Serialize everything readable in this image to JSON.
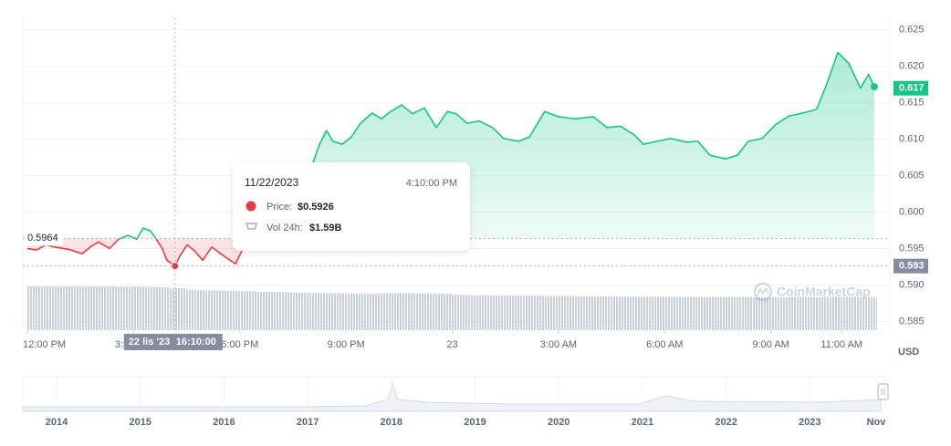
{
  "chart_data": {
    "type": "line",
    "xlim": [
      -0.13,
      24.36
    ],
    "ylim": [
      0.5838,
      0.6266
    ],
    "xticks": [
      {
        "value": 0,
        "label": "12:00 PM"
      },
      {
        "value": 3,
        "label": "3:00 PM"
      },
      {
        "value": 6,
        "label": "6:00 PM"
      },
      {
        "value": 9,
        "label": "9:00 PM"
      },
      {
        "value": 12,
        "label": "23"
      },
      {
        "value": 15,
        "label": "3:00 AM"
      },
      {
        "value": 18,
        "label": "6:00 AM"
      },
      {
        "value": 21,
        "label": "9:00 AM"
      },
      {
        "value": 23,
        "label": "11:00 AM"
      }
    ],
    "yticks": [
      0.625,
      {
        "value": 0.62,
        "label": "0.620"
      },
      0.615,
      {
        "value": 0.61,
        "label": "0.610"
      },
      0.605,
      {
        "value": 0.6,
        "label": "0.600"
      },
      0.595,
      {
        "value": 0.59,
        "label": "0.590"
      },
      0.585
    ],
    "grid": true,
    "y_axis_unit": "USD",
    "color_up": "#16c784",
    "color_down": "#ea3943",
    "series": [
      {
        "name": "Price:",
        "x": [
          0,
          0.26,
          0.52,
          0.77,
          1.16,
          1.55,
          1.8,
          2.01,
          2.32,
          2.58,
          2.84,
          3.09,
          3.27,
          3.48,
          3.61,
          3.81,
          3.94,
          4.17,
          4.3,
          4.51,
          4.72,
          4.95,
          5.21,
          5.54,
          5.88,
          6.06,
          6.31,
          6.96,
          7.73,
          8.25,
          8.45,
          8.63,
          8.89,
          9.15,
          9.41,
          9.74,
          10,
          10.26,
          10.57,
          10.88,
          11.21,
          11.55,
          11.86,
          12.11,
          12.42,
          12.76,
          13.14,
          13.45,
          13.87,
          14.18,
          14.61,
          15,
          15.46,
          15.98,
          16.37,
          16.75,
          17.14,
          17.4,
          17.78,
          18.17,
          18.61,
          18.94,
          19.28,
          19.72,
          20.05,
          20.36,
          20.75,
          21.13,
          21.52,
          21.91,
          22.29,
          22.55,
          22.89,
          23.2,
          23.53,
          23.76,
          23.92
        ],
        "values": [
          0.595,
          0.5948,
          0.5955,
          0.5952,
          0.5949,
          0.5943,
          0.5953,
          0.5959,
          0.595,
          0.5963,
          0.5968,
          0.5963,
          0.5978,
          0.5974,
          0.5965,
          0.595,
          0.5934,
          0.5926,
          0.5939,
          0.5955,
          0.5947,
          0.5934,
          0.5952,
          0.594,
          0.5929,
          0.5947,
          0.5965,
          0.5984,
          0.6022,
          0.6093,
          0.6112,
          0.6097,
          0.6093,
          0.6103,
          0.6122,
          0.6136,
          0.6128,
          0.6138,
          0.6147,
          0.6135,
          0.6143,
          0.6116,
          0.6138,
          0.6135,
          0.6122,
          0.6125,
          0.6116,
          0.6101,
          0.6097,
          0.6103,
          0.6138,
          0.6131,
          0.6128,
          0.6131,
          0.6116,
          0.6118,
          0.6106,
          0.6093,
          0.6097,
          0.6101,
          0.6096,
          0.6097,
          0.6078,
          0.6073,
          0.6078,
          0.6097,
          0.6101,
          0.612,
          0.6132,
          0.6136,
          0.6141,
          0.6172,
          0.6219,
          0.6204,
          0.617,
          0.6189,
          0.6172
        ]
      }
    ],
    "volume": {
      "name": "Vol 24h:",
      "color": "#c8cfdb",
      "x": [
        0,
        0.5,
        1,
        1.5,
        2,
        2.5,
        3,
        3.5,
        4,
        4.5,
        5,
        5.5,
        6,
        6.5,
        7,
        7.5,
        8,
        8.5,
        9,
        9.5,
        10,
        10.5,
        11,
        11.5,
        12,
        12.5,
        13,
        13.5,
        14,
        14.5,
        15,
        15.5,
        16,
        16.5,
        17,
        17.5,
        18,
        18.5,
        19,
        19.5,
        20,
        20.5,
        21,
        21.5,
        22,
        22.5,
        23,
        23.5
      ],
      "values": [
        1.73,
        1.73,
        1.73,
        1.73,
        1.73,
        1.72,
        1.72,
        1.7,
        1.66,
        1.59,
        1.57,
        1.55,
        1.54,
        1.52,
        1.5,
        1.48,
        1.47,
        1.46,
        1.45,
        1.45,
        1.46,
        1.46,
        1.45,
        1.45,
        1.4,
        1.38,
        1.37,
        1.37,
        1.36,
        1.35,
        1.35,
        1.34,
        1.33,
        1.33,
        1.32,
        1.32,
        1.32,
        1.31,
        1.31,
        1.31,
        1.31,
        1.3,
        1.3,
        1.31,
        1.31,
        1.32,
        1.32,
        1.31
      ]
    },
    "reference": 0.5964,
    "current_price": 0.617,
    "hover": {
      "x": 4.17,
      "price": {
        "value": 0.5926,
        "label": "0.593"
      },
      "date": "11/22/2023",
      "time": "4:10:00 PM",
      "price_text": "$0.5926",
      "volume_text": "$1.59B",
      "axis_date": "22 lis '23",
      "axis_time": "16:10:00"
    },
    "watermark": "CoinMarketCap",
    "navigator": {
      "labels": [
        "2014",
        "2015",
        "2016",
        "2017",
        "2018",
        "2019",
        "2020",
        "2021",
        "2022",
        "2023",
        "Nov"
      ]
    }
  }
}
